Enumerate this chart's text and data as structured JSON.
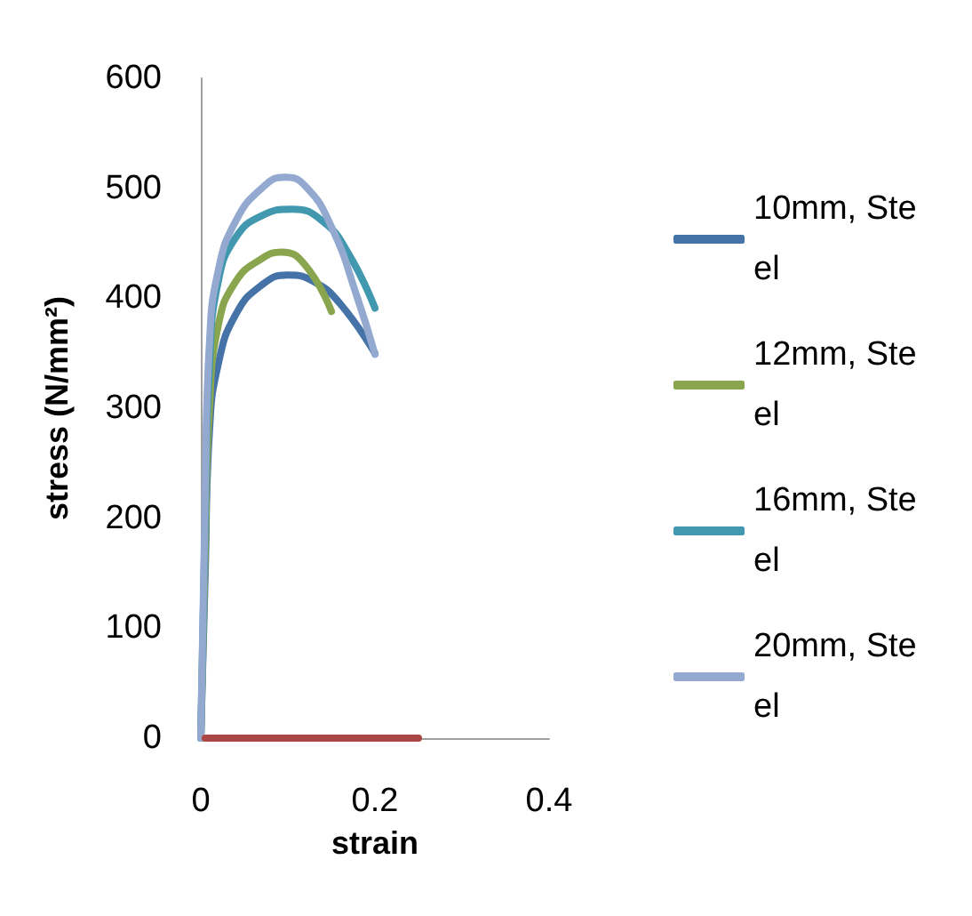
{
  "chart_data": {
    "type": "line",
    "xlabel": "strain",
    "ylabel": "stress (N/mm²)",
    "xlim": [
      0,
      0.4
    ],
    "xticks": [
      0,
      0.2,
      0.4
    ],
    "ylim": [
      0,
      600
    ],
    "yticks": [
      0,
      100,
      200,
      300,
      400,
      500,
      600
    ],
    "grid": false,
    "legend": "right",
    "marker": "none",
    "line_style": "solid",
    "series": [
      {
        "name": "10mm, Steel",
        "color": "#4572a7",
        "x": [
          0,
          0.005,
          0.01,
          0.02,
          0.04,
          0.07,
          0.1,
          0.13,
          0.16,
          0.2
        ],
        "values": [
          0,
          150,
          280,
          340,
          385,
          412,
          421,
          415,
          395,
          350
        ]
      },
      {
        "name": "12mm, Steel",
        "color": "#89a54e",
        "x": [
          0,
          0.005,
          0.01,
          0.02,
          0.04,
          0.07,
          0.093,
          0.12,
          0.15
        ],
        "values": [
          0,
          170,
          300,
          375,
          415,
          436,
          442,
          430,
          388
        ]
      },
      {
        "name": "16mm, Steel",
        "color": "#4198af",
        "x": [
          0,
          0.005,
          0.01,
          0.02,
          0.04,
          0.07,
          0.105,
          0.14,
          0.17,
          0.2
        ],
        "values": [
          0,
          200,
          340,
          415,
          455,
          475,
          481,
          470,
          440,
          391
        ]
      },
      {
        "name": "20mm, Steel",
        "color": "#93a9cf",
        "x": [
          0,
          0.005,
          0.01,
          0.02,
          0.04,
          0.07,
          0.096,
          0.12,
          0.15,
          0.18,
          0.2
        ],
        "values": [
          0,
          220,
          360,
          425,
          470,
          500,
          510,
          502,
          465,
          400,
          349
        ]
      },
      {
        "color": "#aa4643",
        "x": [
          0.005,
          0.25
        ],
        "values": [
          0,
          0
        ]
      }
    ]
  }
}
